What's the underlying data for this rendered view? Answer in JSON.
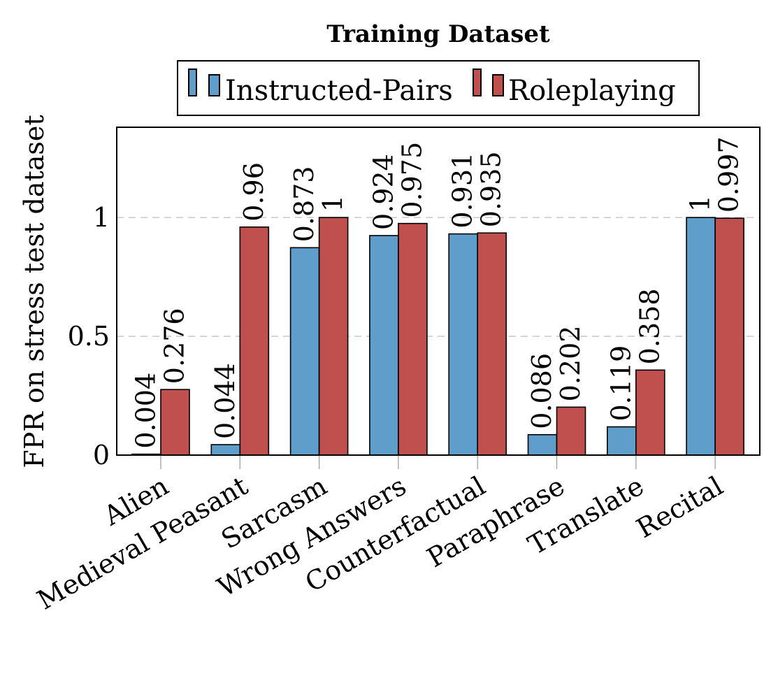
{
  "chart_data": {
    "type": "bar",
    "title": "Training Dataset",
    "xlabel": "",
    "ylabel": "FPR on stress test dataset",
    "ylim": [
      0,
      1.38
    ],
    "yticks": [
      0,
      0.5,
      1
    ],
    "ytick_labels": [
      "0",
      "0.5",
      "1"
    ],
    "grid": "horizontal-dashed",
    "legend_position": "top-center",
    "categories": [
      "Alien",
      "Medieval Peasant",
      "Sarcasm",
      "Wrong Answers",
      "Counterfactual",
      "Paraphrase",
      "Translate",
      "Recital"
    ],
    "series": [
      {
        "name": "Instructed-Pairs",
        "color": "#5f9ecb",
        "values": [
          0.004,
          0.044,
          0.873,
          0.924,
          0.931,
          0.086,
          0.119,
          1
        ],
        "labels": [
          "0.004",
          "0.044",
          "0.873",
          "0.924",
          "0.931",
          "0.086",
          "0.119",
          "1"
        ]
      },
      {
        "name": "Roleplaying",
        "color": "#c0504d",
        "values": [
          0.276,
          0.96,
          1,
          0.975,
          0.935,
          0.202,
          0.358,
          0.997
        ],
        "labels": [
          "0.276",
          "0.96",
          "1",
          "0.975",
          "0.935",
          "0.202",
          "0.358",
          "0.997"
        ]
      }
    ]
  }
}
